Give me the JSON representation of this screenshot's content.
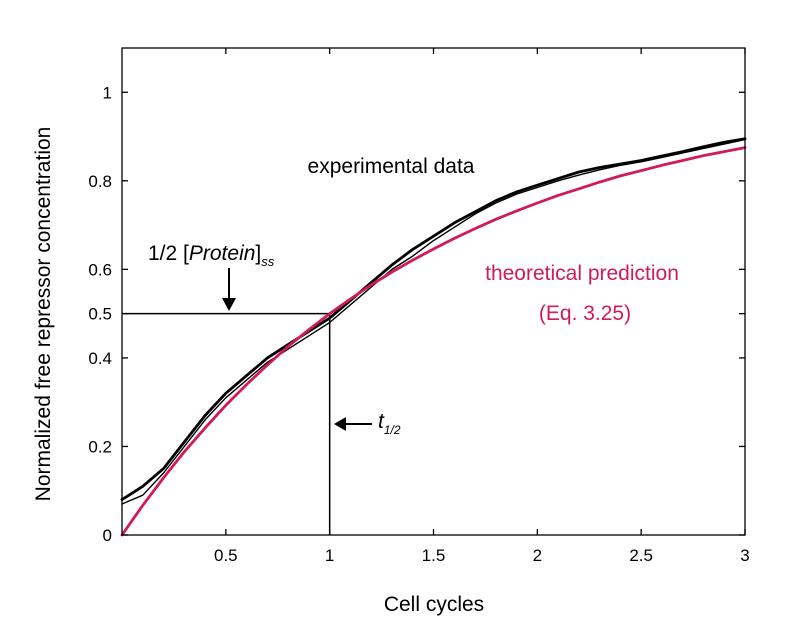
{
  "chart_data": {
    "type": "line",
    "title": "",
    "xlabel": "Cell cycles",
    "ylabel": "Normalized free repressor concentration",
    "xlim": [
      0,
      3
    ],
    "ylim": [
      0,
      1.1
    ],
    "xticks": [
      0.5,
      1,
      1.5,
      2,
      2.5,
      3
    ],
    "xtick_labels": [
      "0.5",
      "1",
      "1.5",
      "2",
      "2.5",
      "3"
    ],
    "yticks": [
      0,
      0.2,
      0.4,
      0.5,
      0.6,
      0.8,
      1
    ],
    "ytick_labels": [
      "0",
      "0.2",
      "0.4",
      "0.5",
      "0.6",
      "0.8",
      "1"
    ],
    "grid": false,
    "series": [
      {
        "name": "experimental data",
        "color": "#000000",
        "x": [
          0,
          0.1,
          0.2,
          0.3,
          0.4,
          0.5,
          0.6,
          0.7,
          0.8,
          0.9,
          1.0,
          1.1,
          1.2,
          1.3,
          1.4,
          1.5,
          1.6,
          1.7,
          1.8,
          1.9,
          2.0,
          2.1,
          2.2,
          2.3,
          2.4,
          2.5,
          2.6,
          2.7,
          2.8,
          2.9,
          3.0
        ],
        "y": [
          0.08,
          0.11,
          0.15,
          0.21,
          0.27,
          0.32,
          0.36,
          0.4,
          0.43,
          0.46,
          0.49,
          0.53,
          0.57,
          0.61,
          0.645,
          0.675,
          0.705,
          0.73,
          0.755,
          0.775,
          0.79,
          0.805,
          0.82,
          0.83,
          0.838,
          0.846,
          0.856,
          0.866,
          0.877,
          0.887,
          0.895
        ]
      },
      {
        "name": "experimental data trace 2",
        "color": "#000000",
        "x": [
          0,
          0.1,
          0.2,
          0.3,
          0.4,
          0.5,
          0.6,
          0.7,
          0.8,
          0.9,
          1.0,
          1.1,
          1.2,
          1.3,
          1.4,
          1.5,
          1.6,
          1.7,
          1.8,
          1.9,
          2.0,
          2.1,
          2.2,
          2.3,
          2.4,
          2.5,
          2.6,
          2.7,
          2.8,
          2.9,
          3.0
        ],
        "y": [
          0.07,
          0.09,
          0.14,
          0.2,
          0.26,
          0.31,
          0.35,
          0.39,
          0.42,
          0.45,
          0.48,
          0.52,
          0.56,
          0.6,
          0.63,
          0.665,
          0.695,
          0.725,
          0.75,
          0.77,
          0.785,
          0.8,
          0.813,
          0.825,
          0.835,
          0.843,
          0.853,
          0.863,
          0.873,
          0.883,
          0.893
        ]
      },
      {
        "name": "theoretical prediction",
        "color": "#d01c55",
        "x": [
          0,
          0.1,
          0.2,
          0.3,
          0.4,
          0.5,
          0.6,
          0.7,
          0.8,
          0.9,
          1.0,
          1.1,
          1.2,
          1.3,
          1.4,
          1.5,
          1.6,
          1.7,
          1.8,
          1.9,
          2.0,
          2.1,
          2.2,
          2.3,
          2.4,
          2.5,
          2.6,
          2.7,
          2.8,
          2.9,
          3.0
        ],
        "y": [
          0.0,
          0.067,
          0.129,
          0.188,
          0.242,
          0.293,
          0.34,
          0.384,
          0.426,
          0.464,
          0.5,
          0.533,
          0.565,
          0.594,
          0.621,
          0.646,
          0.67,
          0.692,
          0.713,
          0.732,
          0.75,
          0.767,
          0.782,
          0.797,
          0.811,
          0.823,
          0.835,
          0.846,
          0.857,
          0.866,
          0.875
        ]
      }
    ],
    "annotations": {
      "experimental_label": "experimental data",
      "theory_label_line1": "theoretical prediction",
      "theory_label_line2": "(Eq. 3.25)",
      "half_protein_prefix": "1/2 [",
      "half_protein_italic": "Protein",
      "half_protein_bracket": "]",
      "half_protein_sub": "ss",
      "t_half_main": "t",
      "t_half_sub": "1/2",
      "half_level": 0.5,
      "half_time": 1.0
    },
    "colors": {
      "experimental": "#000000",
      "theory": "#d01c55"
    }
  }
}
